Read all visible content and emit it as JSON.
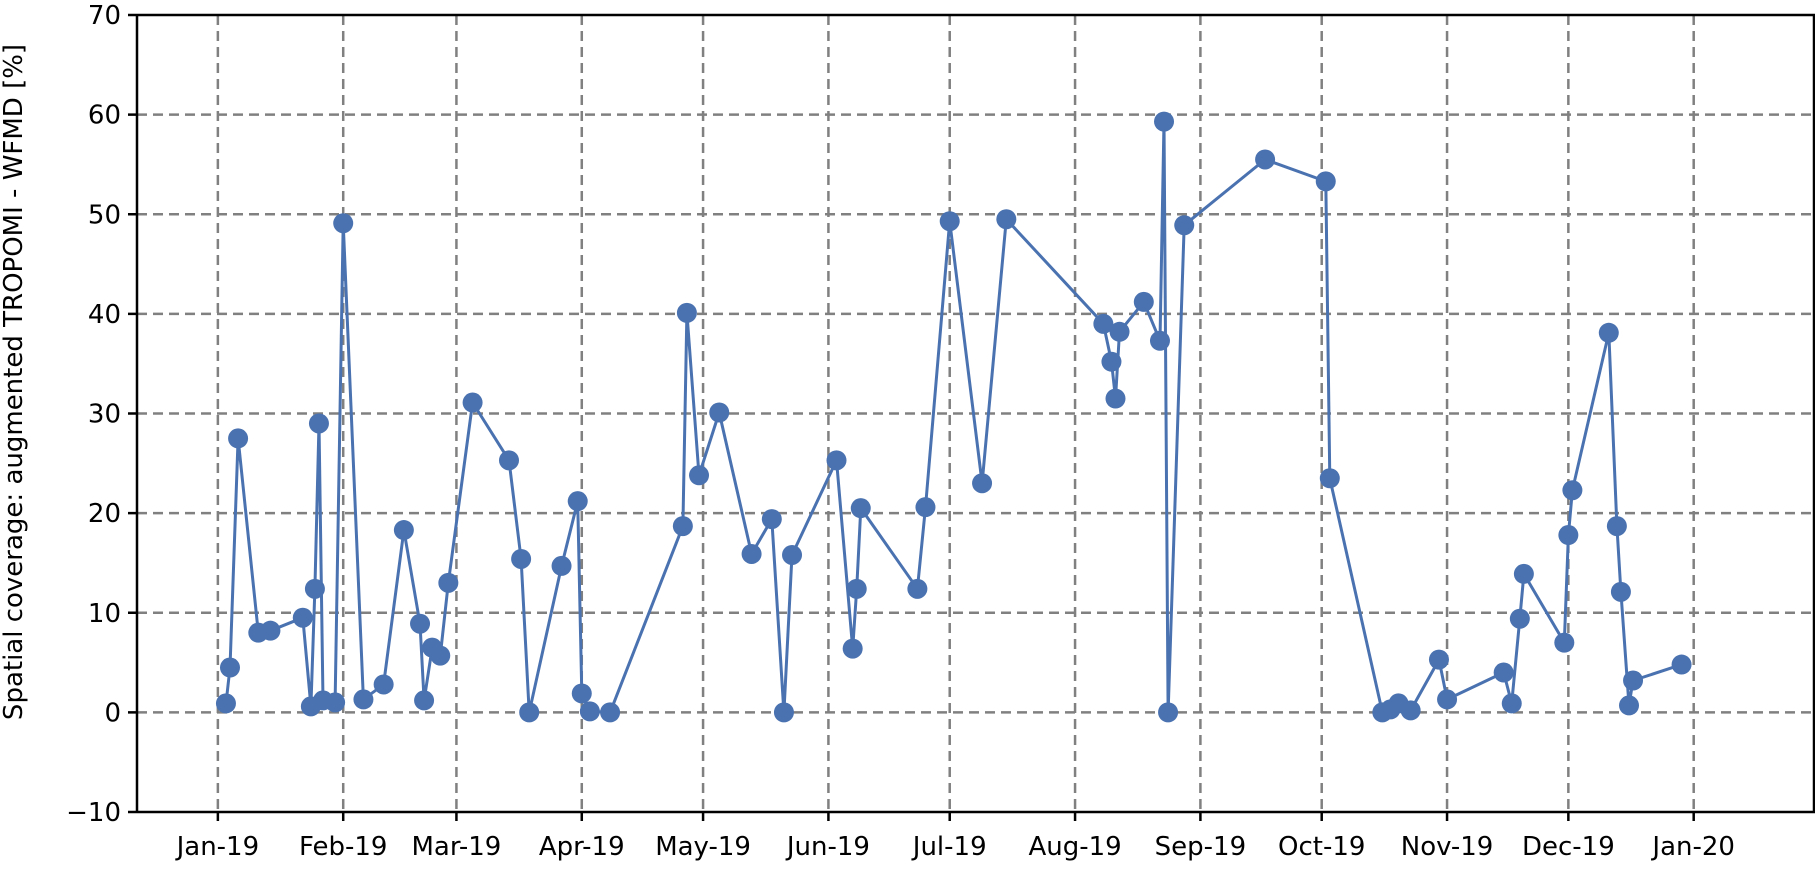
{
  "chart_data": {
    "type": "line",
    "ylabel": "Spatial coverage: augmented TROPOMI - WFMD [%]",
    "xlabel": "",
    "xlim": [
      "2018-12-12",
      "2020-01-31"
    ],
    "ylim": [
      -10,
      70
    ],
    "grid": true,
    "x_tick_dates": [
      "2019-01-01",
      "2019-02-01",
      "2019-03-01",
      "2019-04-01",
      "2019-05-01",
      "2019-06-01",
      "2019-07-01",
      "2019-08-01",
      "2019-09-01",
      "2019-10-01",
      "2019-11-01",
      "2019-12-01",
      "2020-01-01"
    ],
    "x_tick_labels": [
      "Jan-19",
      "Feb-19",
      "Mar-19",
      "Apr-19",
      "May-19",
      "Jun-19",
      "Jul-19",
      "Aug-19",
      "Sep-19",
      "Oct-19",
      "Nov-19",
      "Dec-19",
      "Jan-20"
    ],
    "y_ticks": [
      -10,
      0,
      10,
      20,
      30,
      40,
      50,
      60,
      70
    ],
    "colors": {
      "series": "#4a72b0",
      "grid": "#808080",
      "axis": "#000000"
    },
    "series": [
      {
        "points": [
          [
            "2019-01-03",
            0.9
          ],
          [
            "2019-01-04",
            4.5
          ],
          [
            "2019-01-06",
            27.5
          ],
          [
            "2019-01-11",
            8.0
          ],
          [
            "2019-01-14",
            8.2
          ],
          [
            "2019-01-22",
            9.5
          ],
          [
            "2019-01-24",
            0.6
          ],
          [
            "2019-01-25",
            12.4
          ],
          [
            "2019-01-26",
            29.0
          ],
          [
            "2019-01-27",
            1.2
          ],
          [
            "2019-01-30",
            1.0
          ],
          [
            "2019-02-01",
            49.1
          ],
          [
            "2019-02-06",
            1.3
          ],
          [
            "2019-02-11",
            2.8
          ],
          [
            "2019-02-16",
            18.3
          ],
          [
            "2019-02-20",
            8.9
          ],
          [
            "2019-02-21",
            1.2
          ],
          [
            "2019-02-23",
            6.5
          ],
          [
            "2019-02-25",
            5.7
          ],
          [
            "2019-02-27",
            13.0
          ],
          [
            "2019-03-05",
            31.1
          ],
          [
            "2019-03-14",
            25.3
          ],
          [
            "2019-03-17",
            15.4
          ],
          [
            "2019-03-19",
            0.0
          ],
          [
            "2019-03-27",
            14.7
          ],
          [
            "2019-03-31",
            21.2
          ],
          [
            "2019-04-01",
            1.9
          ],
          [
            "2019-04-03",
            0.1
          ],
          [
            "2019-04-08",
            0.0
          ],
          [
            "2019-04-26",
            18.7
          ],
          [
            "2019-04-27",
            40.1
          ],
          [
            "2019-04-30",
            23.8
          ],
          [
            "2019-05-05",
            30.1
          ],
          [
            "2019-05-13",
            15.9
          ],
          [
            "2019-05-18",
            19.4
          ],
          [
            "2019-05-21",
            0.0
          ],
          [
            "2019-05-23",
            15.8
          ],
          [
            "2019-06-03",
            25.3
          ],
          [
            "2019-06-07",
            6.4
          ],
          [
            "2019-06-08",
            12.4
          ],
          [
            "2019-06-09",
            20.5
          ],
          [
            "2019-06-23",
            12.4
          ],
          [
            "2019-06-25",
            20.6
          ],
          [
            "2019-07-01",
            49.3
          ],
          [
            "2019-07-09",
            23.0
          ],
          [
            "2019-07-15",
            49.5
          ],
          [
            "2019-08-08",
            39.0
          ],
          [
            "2019-08-10",
            35.2
          ],
          [
            "2019-08-11",
            31.5
          ],
          [
            "2019-08-12",
            38.2
          ],
          [
            "2019-08-18",
            41.2
          ],
          [
            "2019-08-22",
            37.3
          ],
          [
            "2019-08-23",
            59.3
          ],
          [
            "2019-08-24",
            0.0
          ],
          [
            "2019-08-28",
            48.9
          ],
          [
            "2019-09-17",
            55.5
          ],
          [
            "2019-10-02",
            53.3
          ],
          [
            "2019-10-03",
            23.5
          ],
          [
            "2019-10-16",
            0.0
          ],
          [
            "2019-10-18",
            0.3
          ],
          [
            "2019-10-20",
            0.9
          ],
          [
            "2019-10-23",
            0.2
          ],
          [
            "2019-10-30",
            5.3
          ],
          [
            "2019-11-01",
            1.3
          ],
          [
            "2019-11-15",
            4.0
          ],
          [
            "2019-11-17",
            0.9
          ],
          [
            "2019-11-19",
            9.4
          ],
          [
            "2019-11-20",
            13.9
          ],
          [
            "2019-11-30",
            7.0
          ],
          [
            "2019-12-01",
            17.8
          ],
          [
            "2019-12-02",
            22.3
          ],
          [
            "2019-12-11",
            38.1
          ],
          [
            "2019-12-13",
            18.7
          ],
          [
            "2019-12-14",
            12.1
          ],
          [
            "2019-12-16",
            0.7
          ],
          [
            "2019-12-17",
            3.2
          ],
          [
            "2019-12-29",
            4.8
          ]
        ]
      }
    ]
  }
}
